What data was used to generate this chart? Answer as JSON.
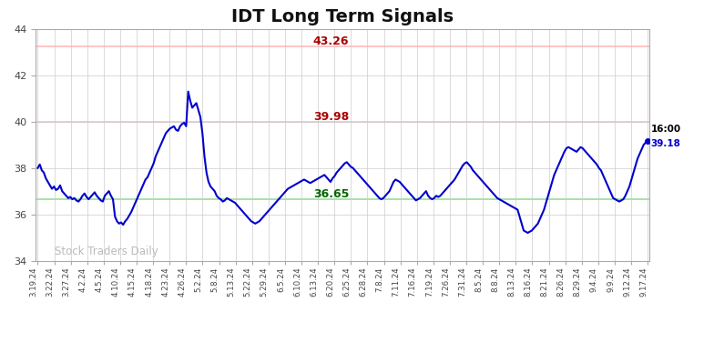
{
  "title": "IDT Long Term Signals",
  "title_fontsize": 14,
  "ylim": [
    34,
    44
  ],
  "yticks": [
    34,
    36,
    38,
    40,
    42,
    44
  ],
  "hline_upper": 43.26,
  "hline_middle": 39.98,
  "hline_lower": 36.65,
  "hline_upper_color": "#ffbbbb",
  "hline_middle_color": "#ffbbbb",
  "hline_lower_color": "#99dd99",
  "label_upper": "43.26",
  "label_middle": "39.98",
  "label_lower": "36.65",
  "label_upper_color": "#aa0000",
  "label_middle_color": "#aa0000",
  "label_lower_color": "#006600",
  "watermark": "Stock Traders Daily",
  "watermark_color": "#bbbbbb",
  "line_color": "#0000cc",
  "line_width": 1.5,
  "end_dot_color": "#0000cc",
  "end_label_time": "16:00",
  "end_label_price": "39.18",
  "background_color": "#ffffff",
  "tick_label_color": "#444444",
  "x_labels": [
    "3.19.24",
    "3.22.24",
    "3.27.24",
    "4.2.24",
    "4.5.24",
    "4.10.24",
    "4.15.24",
    "4.18.24",
    "4.23.24",
    "4.26.24",
    "5.2.24",
    "5.8.24",
    "5.13.24",
    "5.22.24",
    "5.29.24",
    "6.5.24",
    "6.10.24",
    "6.13.24",
    "6.20.24",
    "6.25.24",
    "6.28.24",
    "7.8.24",
    "7.11.24",
    "7.16.24",
    "7.19.24",
    "7.26.24",
    "7.31.24",
    "8.5.24",
    "8.8.24",
    "8.13.24",
    "8.16.24",
    "8.21.24",
    "8.26.24",
    "8.29.24",
    "9.4.24",
    "9.9.24",
    "9.12.24",
    "9.17.24"
  ],
  "y_values": [
    38.0,
    38.15,
    37.9,
    37.8,
    37.55,
    37.4,
    37.25,
    37.1,
    37.2,
    37.05,
    37.1,
    37.25,
    37.0,
    36.9,
    36.8,
    36.7,
    36.75,
    36.65,
    36.7,
    36.6,
    36.55,
    36.65,
    36.8,
    36.9,
    36.75,
    36.65,
    36.75,
    36.85,
    36.95,
    36.8,
    36.7,
    36.6,
    36.55,
    36.8,
    36.9,
    37.0,
    36.8,
    36.65,
    35.9,
    35.7,
    35.6,
    35.65,
    35.55,
    35.7,
    35.8,
    35.95,
    36.1,
    36.3,
    36.5,
    36.7,
    36.9,
    37.1,
    37.3,
    37.5,
    37.6,
    37.8,
    38.0,
    38.2,
    38.5,
    38.7,
    38.9,
    39.1,
    39.3,
    39.5,
    39.6,
    39.7,
    39.75,
    39.8,
    39.65,
    39.6,
    39.8,
    39.9,
    39.95,
    39.8,
    41.3,
    40.9,
    40.6,
    40.7,
    40.8,
    40.5,
    40.2,
    39.5,
    38.5,
    37.8,
    37.4,
    37.2,
    37.1,
    37.0,
    36.8,
    36.7,
    36.65,
    36.55,
    36.6,
    36.7,
    36.65,
    36.6,
    36.55,
    36.5,
    36.4,
    36.3,
    36.2,
    36.1,
    36.0,
    35.9,
    35.8,
    35.7,
    35.65,
    35.6,
    35.65,
    35.7,
    35.8,
    35.9,
    36.0,
    36.1,
    36.2,
    36.3,
    36.4,
    36.5,
    36.6,
    36.7,
    36.8,
    36.9,
    37.0,
    37.1,
    37.15,
    37.2,
    37.25,
    37.3,
    37.35,
    37.4,
    37.45,
    37.5,
    37.45,
    37.4,
    37.35,
    37.4,
    37.45,
    37.5,
    37.55,
    37.6,
    37.65,
    37.7,
    37.6,
    37.5,
    37.4,
    37.55,
    37.65,
    37.8,
    37.9,
    38.0,
    38.1,
    38.2,
    38.25,
    38.15,
    38.05,
    38.0,
    37.9,
    37.8,
    37.7,
    37.6,
    37.5,
    37.4,
    37.3,
    37.2,
    37.1,
    37.0,
    36.9,
    36.8,
    36.7,
    36.65,
    36.7,
    36.8,
    36.9,
    37.0,
    37.2,
    37.4,
    37.5,
    37.45,
    37.4,
    37.3,
    37.2,
    37.1,
    37.0,
    36.9,
    36.8,
    36.7,
    36.6,
    36.65,
    36.7,
    36.8,
    36.9,
    37.0,
    36.8,
    36.7,
    36.65,
    36.7,
    36.8,
    36.75,
    36.8,
    36.9,
    37.0,
    37.1,
    37.2,
    37.3,
    37.4,
    37.5,
    37.65,
    37.8,
    37.95,
    38.1,
    38.2,
    38.25,
    38.15,
    38.05,
    37.9,
    37.8,
    37.7,
    37.6,
    37.5,
    37.4,
    37.3,
    37.2,
    37.1,
    37.0,
    36.9,
    36.8,
    36.7,
    36.65,
    36.6,
    36.55,
    36.5,
    36.45,
    36.4,
    36.35,
    36.3,
    36.25,
    36.2,
    35.9,
    35.6,
    35.3,
    35.25,
    35.2,
    35.25,
    35.3,
    35.4,
    35.5,
    35.6,
    35.8,
    36.0,
    36.2,
    36.5,
    36.8,
    37.1,
    37.4,
    37.7,
    37.9,
    38.1,
    38.3,
    38.5,
    38.7,
    38.85,
    38.9,
    38.85,
    38.8,
    38.75,
    38.7,
    38.8,
    38.9,
    38.85,
    38.75,
    38.65,
    38.55,
    38.45,
    38.35,
    38.25,
    38.15,
    38.0,
    37.9,
    37.7,
    37.5,
    37.3,
    37.1,
    36.9,
    36.7,
    36.65,
    36.6,
    36.55,
    36.6,
    36.65,
    36.8,
    37.0,
    37.2,
    37.5,
    37.8,
    38.1,
    38.4,
    38.6,
    38.8,
    39.0,
    39.1,
    39.18
  ]
}
